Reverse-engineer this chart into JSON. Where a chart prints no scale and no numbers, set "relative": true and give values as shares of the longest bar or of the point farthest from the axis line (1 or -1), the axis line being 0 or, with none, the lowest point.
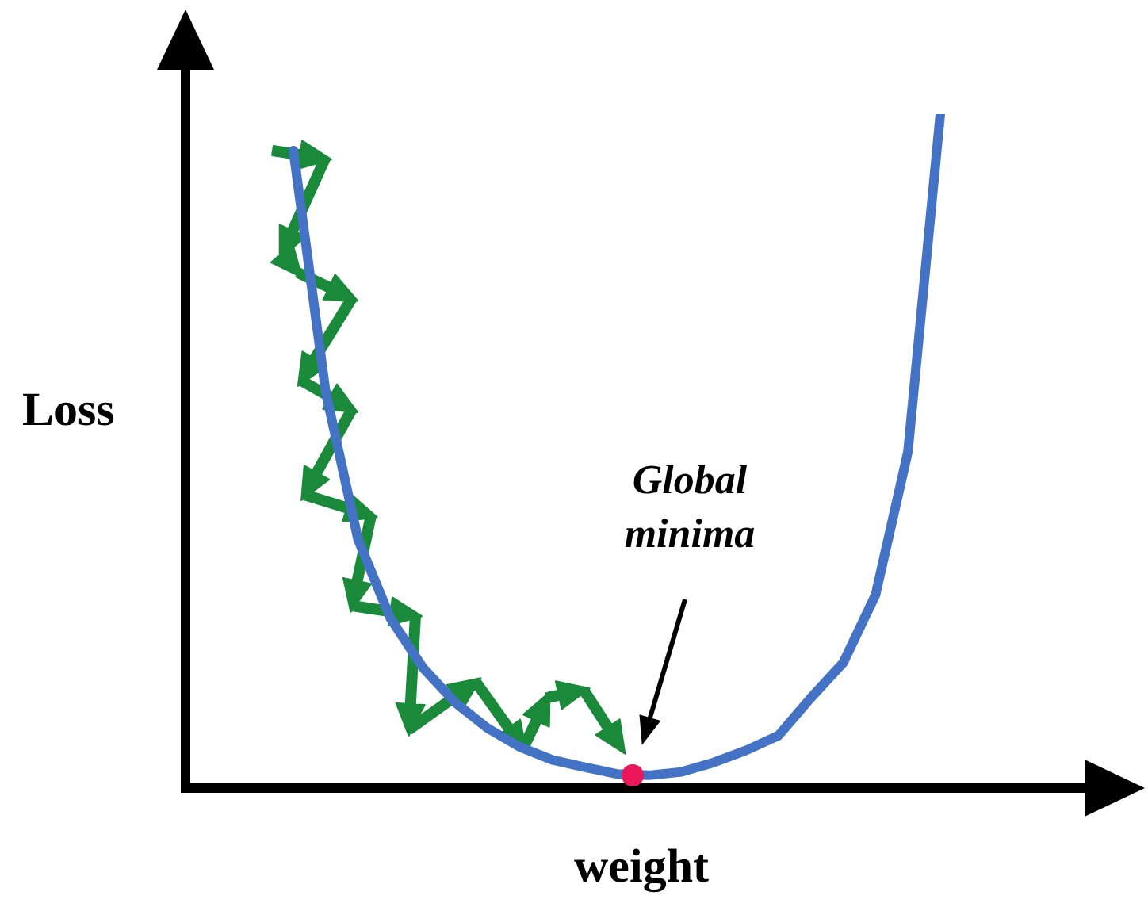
{
  "chart_data": {
    "type": "line",
    "xlabel": "weight",
    "ylabel": "Loss",
    "relative": true,
    "legend": false,
    "categories": [
      null,
      null,
      null,
      null,
      null,
      null,
      null,
      null,
      null,
      null,
      null,
      null,
      null,
      null,
      null,
      null,
      null,
      null,
      null,
      null,
      null
    ],
    "series": [
      {
        "color": "#4472c4",
        "values": [
          0.946,
          0.588,
          0.369,
          0.252,
          0.179,
          0.127,
          0.089,
          0.061,
          0.042,
          0.031,
          0.021,
          0.019,
          0.024,
          0.038,
          0.056,
          0.078,
          0.134,
          0.186,
          0.287,
          0.499,
          1
        ]
      }
    ],
    "annotations": [
      "Global minima"
    ]
  }
}
